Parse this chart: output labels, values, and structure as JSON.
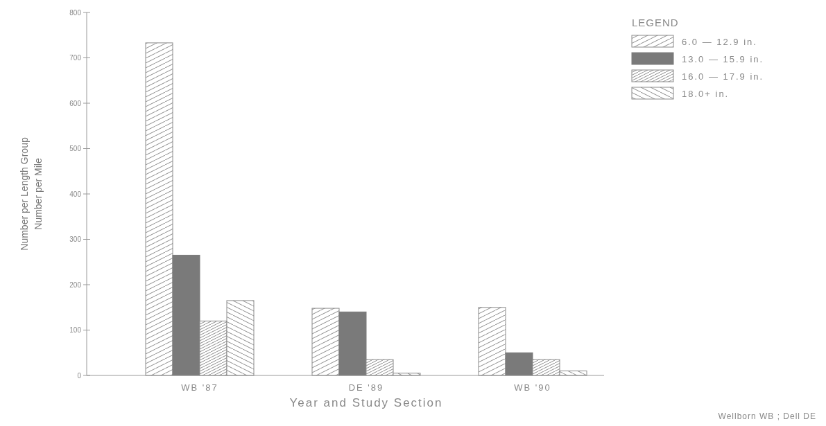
{
  "chart_data": {
    "type": "bar",
    "xlabel": "Year and Study Section",
    "ylabel": "Number per Length Group\nNumber per Mile",
    "legend_title": "LEGEND",
    "legend": "top right",
    "categories": [
      "WB '87",
      "DE '89",
      "WB '90"
    ],
    "series": [
      {
        "name": "6.0 — 12.9 in.",
        "color": "#8a8a8a",
        "values": [
          733,
          148,
          150
        ]
      },
      {
        "name": "13.0 — 15.9 in.",
        "color": "#7a7a7a",
        "values": [
          265,
          140,
          50
        ]
      },
      {
        "name": "16.0 — 17.9 in.",
        "color": "#8a8a8a",
        "values": [
          120,
          35,
          35
        ]
      },
      {
        "name": "18.0+ in.",
        "color": "#8a8a8a",
        "values": [
          165,
          5,
          10
        ]
      }
    ],
    "ylim": [
      0,
      800
    ],
    "yticks": [
      0,
      100,
      200,
      300,
      400,
      500,
      600,
      700,
      800
    ],
    "grid": false,
    "annotations": [
      "Wellborn WB ; Dell DE"
    ]
  }
}
